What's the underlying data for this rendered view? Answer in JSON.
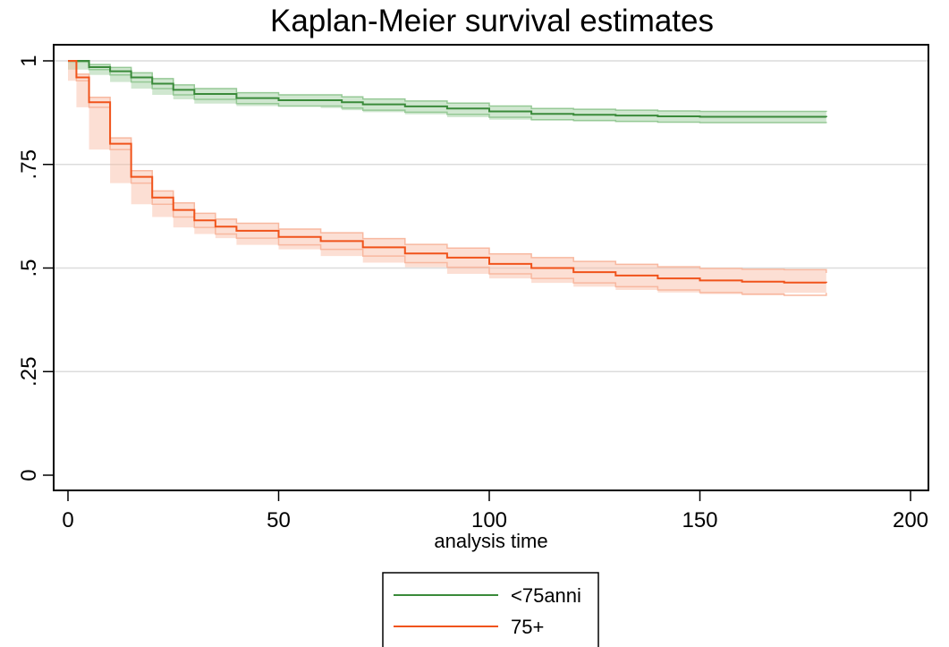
{
  "chart_data": {
    "type": "line",
    "title": "Kaplan-Meier survival estimates",
    "xlabel": "analysis time",
    "ylabel": "",
    "xlim": [
      0,
      200
    ],
    "ylim": [
      0,
      1
    ],
    "x_ticks": [
      0,
      50,
      100,
      150,
      200
    ],
    "x_tick_labels": [
      "0",
      "50",
      "100",
      "150",
      "200"
    ],
    "y_ticks": [
      0,
      0.25,
      0.5,
      0.75,
      1
    ],
    "y_tick_labels": [
      "0",
      ".25",
      ".5",
      ".75",
      "1"
    ],
    "grid": "horizontal",
    "legend_position": "bottom",
    "series": [
      {
        "name": "<75anni",
        "color": "#3a8a3a",
        "band_color": "#96c996",
        "x": [
          0,
          5,
          10,
          15,
          20,
          25,
          30,
          40,
          50,
          60,
          65,
          70,
          80,
          90,
          100,
          110,
          120,
          130,
          140,
          150,
          160,
          170,
          180
        ],
        "y": [
          1.0,
          0.985,
          0.975,
          0.96,
          0.945,
          0.93,
          0.92,
          0.91,
          0.905,
          0.905,
          0.9,
          0.895,
          0.89,
          0.885,
          0.878,
          0.872,
          0.87,
          0.868,
          0.866,
          0.865,
          0.865,
          0.865,
          0.864
        ],
        "lower": [
          0.997,
          0.979,
          0.966,
          0.949,
          0.933,
          0.918,
          0.907,
          0.897,
          0.891,
          0.891,
          0.886,
          0.881,
          0.876,
          0.871,
          0.864,
          0.858,
          0.856,
          0.854,
          0.852,
          0.851,
          0.851,
          0.851,
          0.85
        ],
        "upper": [
          1.0,
          0.991,
          0.984,
          0.971,
          0.957,
          0.942,
          0.933,
          0.923,
          0.918,
          0.918,
          0.913,
          0.908,
          0.903,
          0.898,
          0.891,
          0.885,
          0.883,
          0.881,
          0.879,
          0.878,
          0.878,
          0.878,
          0.877
        ]
      },
      {
        "name": "75+",
        "color": "#f0531b",
        "band_color": "#f8b9a0",
        "x": [
          0,
          2,
          5,
          10,
          15,
          20,
          25,
          30,
          35,
          40,
          50,
          60,
          70,
          80,
          90,
          100,
          110,
          120,
          130,
          140,
          150,
          160,
          170,
          180
        ],
        "y": [
          1.0,
          0.96,
          0.9,
          0.8,
          0.72,
          0.67,
          0.64,
          0.615,
          0.6,
          0.59,
          0.575,
          0.565,
          0.55,
          0.535,
          0.525,
          0.51,
          0.5,
          0.49,
          0.482,
          0.475,
          0.47,
          0.467,
          0.465,
          0.464
        ],
        "lower": [
          1.0,
          0.952,
          0.888,
          0.786,
          0.705,
          0.654,
          0.623,
          0.598,
          0.582,
          0.572,
          0.556,
          0.545,
          0.529,
          0.513,
          0.502,
          0.486,
          0.475,
          0.464,
          0.455,
          0.447,
          0.441,
          0.437,
          0.434,
          0.44
        ],
        "upper": [
          1.0,
          0.968,
          0.912,
          0.814,
          0.735,
          0.686,
          0.657,
          0.632,
          0.618,
          0.608,
          0.594,
          0.585,
          0.571,
          0.557,
          0.548,
          0.534,
          0.525,
          0.516,
          0.509,
          0.503,
          0.499,
          0.497,
          0.496,
          0.488
        ]
      }
    ]
  }
}
